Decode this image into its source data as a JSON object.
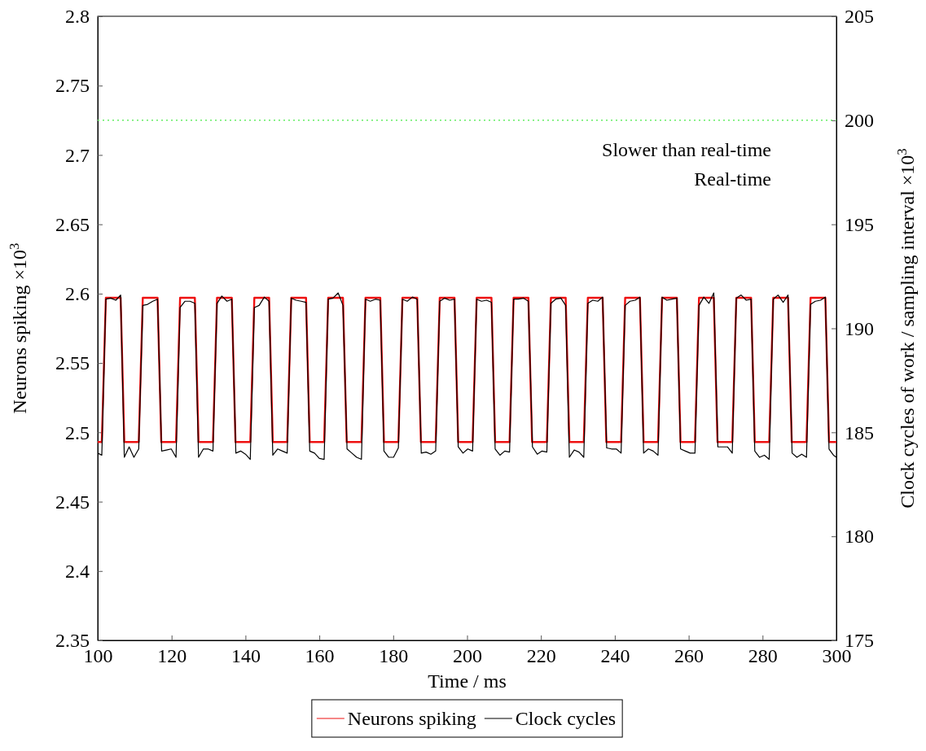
{
  "chart_data": {
    "type": "line",
    "xlabel": "Time / ms",
    "ylabel": "Neurons spiking ×10$^{3}$",
    "y2label": "Clock cycles of work / sampling interval ×10$^{3}$",
    "xlim": [
      100,
      300
    ],
    "xticks": [
      100,
      120,
      140,
      160,
      180,
      200,
      220,
      240,
      260,
      280,
      300
    ],
    "ylim": [
      2.35,
      2.8
    ],
    "yticks": [
      2.35,
      2.4,
      2.45,
      2.5,
      2.55,
      2.6,
      2.65,
      2.7,
      2.75,
      2.8
    ],
    "y2lim": [
      175,
      205
    ],
    "y2ticks": [
      175,
      180,
      185,
      190,
      195,
      200,
      205
    ],
    "grid": false,
    "legend": "bottom",
    "marker": "none",
    "line_style": "solid",
    "ref_lines": [
      {
        "axis": "y2",
        "value": 200,
        "color": "#66ee66",
        "line_style": "dotted"
      }
    ],
    "annotations": [
      "Slower than real-time",
      "Real-time"
    ],
    "series": [
      {
        "name": "Neurons spiking",
        "color": "#ee1111",
        "x": [
          100,
          101.1,
          102.2,
          106.2,
          107.2,
          111.1,
          112.2,
          116.2,
          117.2,
          121.2,
          122.3,
          126.3,
          127.3,
          131.2,
          132.3,
          136.3,
          137.3,
          141.3,
          142.4,
          146.4,
          147.4,
          151.3,
          152.4,
          156.4,
          157.4,
          161.3,
          162.4,
          166.4,
          167.4,
          171.4,
          172.5,
          176.5,
          177.5,
          181.4,
          182.5,
          186.5,
          187.5,
          191.5,
          192.6,
          196.6,
          197.6,
          201.5,
          202.6,
          206.6,
          207.6,
          211.5,
          212.6,
          216.6,
          217.6,
          221.6,
          222.7,
          226.7,
          227.7,
          231.6,
          232.7,
          236.7,
          237.7,
          241.7,
          242.8,
          246.8,
          247.8,
          251.7,
          252.8,
          256.8,
          257.8,
          261.7,
          262.8,
          266.8,
          267.8,
          271.8,
          272.9,
          276.9,
          277.9,
          281.8,
          282.9,
          286.9,
          287.9,
          291.9,
          293.0,
          297.0,
          298.0,
          300
        ],
        "values": [
          2.493,
          2.493,
          2.597,
          2.597,
          2.493,
          2.493,
          2.597,
          2.597,
          2.493,
          2.493,
          2.597,
          2.597,
          2.493,
          2.493,
          2.597,
          2.597,
          2.493,
          2.493,
          2.597,
          2.597,
          2.493,
          2.493,
          2.597,
          2.597,
          2.493,
          2.493,
          2.597,
          2.597,
          2.493,
          2.493,
          2.597,
          2.597,
          2.493,
          2.493,
          2.597,
          2.597,
          2.493,
          2.493,
          2.597,
          2.597,
          2.493,
          2.493,
          2.597,
          2.597,
          2.493,
          2.493,
          2.597,
          2.597,
          2.493,
          2.493,
          2.597,
          2.597,
          2.493,
          2.493,
          2.597,
          2.597,
          2.493,
          2.493,
          2.597,
          2.597,
          2.493,
          2.493,
          2.597,
          2.597,
          2.493,
          2.493,
          2.597,
          2.597,
          2.493,
          2.493,
          2.597,
          2.597,
          2.493,
          2.493,
          2.597,
          2.597,
          2.493,
          2.493,
          2.597,
          2.597,
          2.493,
          2.493
        ]
      },
      {
        "name": "Clock cycles",
        "color": "#000000",
        "axis": "y2",
        "x": [
          100,
          101.1,
          102.2,
          103.5,
          104.9,
          106.2,
          107.2,
          108.5,
          109.8,
          111.1,
          112.2,
          113.5,
          114.9,
          116.2,
          117.3,
          118.6,
          119.9,
          121.2,
          122.3,
          123.6,
          125.0,
          126.3,
          127.3,
          128.6,
          129.9,
          131.2,
          132.3,
          133.6,
          135.0,
          136.3,
          137.4,
          138.7,
          140.0,
          141.3,
          142.4,
          143.7,
          145.1,
          146.4,
          147.4,
          148.7,
          150.0,
          151.3,
          152.4,
          153.7,
          155.1,
          156.4,
          157.4,
          158.7,
          160.0,
          161.3,
          162.4,
          163.7,
          165.1,
          166.4,
          167.5,
          168.8,
          170.1,
          171.4,
          172.5,
          173.8,
          175.2,
          176.5,
          177.5,
          178.8,
          180.1,
          181.4,
          182.5,
          183.8,
          185.2,
          186.5,
          187.6,
          188.9,
          190.2,
          191.5,
          192.6,
          193.9,
          195.3,
          196.6,
          197.6,
          198.9,
          200.2,
          201.5,
          202.6,
          203.9,
          205.3,
          206.6,
          207.6,
          208.9,
          210.2,
          211.5,
          212.6,
          213.9,
          215.3,
          216.6,
          217.7,
          219.0,
          220.3,
          221.6,
          222.7,
          224.0,
          225.4,
          226.7,
          227.7,
          229.0,
          230.3,
          231.6,
          232.7,
          234.0,
          235.4,
          236.7,
          237.8,
          239.1,
          240.4,
          241.7,
          242.8,
          244.1,
          245.5,
          246.8,
          247.8,
          249.1,
          250.4,
          251.7,
          252.8,
          254.1,
          255.5,
          256.8,
          257.8,
          259.1,
          260.4,
          261.7,
          262.8,
          264.1,
          265.5,
          266.8,
          267.9,
          269.2,
          270.5,
          271.8,
          272.9,
          274.2,
          275.6,
          276.9,
          277.9,
          279.2,
          280.5,
          281.8,
          282.9,
          284.2,
          285.6,
          286.9,
          288.0,
          289.3,
          290.6,
          291.9,
          293.0,
          294.3,
          295.7,
          297.0,
          298.0,
          299.2,
          300
        ],
        "values": [
          184.0,
          183.9,
          191.4,
          191.45,
          191.35,
          191.6,
          183.8,
          184.3,
          183.8,
          184.2,
          191.1,
          191.15,
          191.3,
          191.4,
          184.1,
          184.15,
          184.2,
          183.8,
          191.0,
          191.3,
          191.3,
          191.2,
          183.8,
          184.2,
          184.2,
          184.1,
          191.2,
          191.55,
          191.3,
          191.4,
          184.0,
          184.1,
          183.95,
          183.7,
          191.0,
          191.1,
          191.5,
          191.3,
          183.9,
          184.2,
          184.1,
          184.0,
          191.45,
          191.35,
          191.3,
          191.25,
          184.1,
          184.0,
          183.75,
          183.7,
          191.4,
          191.45,
          191.7,
          191.1,
          184.2,
          184.0,
          183.8,
          183.7,
          191.4,
          191.3,
          191.4,
          191.35,
          184.1,
          183.8,
          183.8,
          184.25,
          191.4,
          191.3,
          191.5,
          191.4,
          184.0,
          184.05,
          183.95,
          184.1,
          191.3,
          191.45,
          191.35,
          191.4,
          184.3,
          184.0,
          184.2,
          184.1,
          191.4,
          191.3,
          191.35,
          191.25,
          184.2,
          183.9,
          184.1,
          184.05,
          191.4,
          191.4,
          191.45,
          191.3,
          184.3,
          183.95,
          184.1,
          184.05,
          191.2,
          191.4,
          191.45,
          191.1,
          183.8,
          184.15,
          184.05,
          183.8,
          191.2,
          191.35,
          191.3,
          191.5,
          184.25,
          184.2,
          184.2,
          184.0,
          191.1,
          191.3,
          191.35,
          191.5,
          184.0,
          184.2,
          184.1,
          183.9,
          191.5,
          191.35,
          191.4,
          191.45,
          184.2,
          184.1,
          184.0,
          184.0,
          191.1,
          191.5,
          191.2,
          191.7,
          184.3,
          184.3,
          184.3,
          184.0,
          191.45,
          191.6,
          191.35,
          191.4,
          184.1,
          183.8,
          183.9,
          183.7,
          191.4,
          191.6,
          191.25,
          191.6,
          184.0,
          183.8,
          183.95,
          183.8,
          191.15,
          191.3,
          191.35,
          191.5,
          184.2,
          183.9,
          183.8
        ]
      }
    ]
  }
}
